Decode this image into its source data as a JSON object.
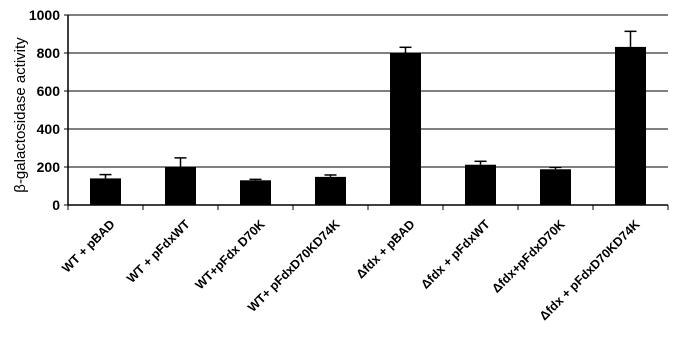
{
  "chart_data": {
    "type": "bar",
    "title": "",
    "xlabel": "",
    "ylabel": "β-galactosidase activity",
    "ylim": [
      0,
      1000
    ],
    "yticks": [
      0,
      200,
      400,
      600,
      800,
      1000
    ],
    "grid": "horizontal",
    "bar_color": "#000000",
    "categories": [
      "WT + pBAD",
      "WT + pFdxWT",
      "WT+pFdx D70K",
      "WT+ pFdxD70KD74K",
      "Δfdx + pBAD",
      "Δfdx + pFdxWT",
      "Δfdx+pFdxD70K",
      "Δfdx + pFdxD70KD74K"
    ],
    "values": [
      140,
      200,
      130,
      148,
      800,
      212,
      188,
      832
    ],
    "errors": [
      20,
      48,
      5,
      10,
      30,
      18,
      10,
      82
    ]
  }
}
